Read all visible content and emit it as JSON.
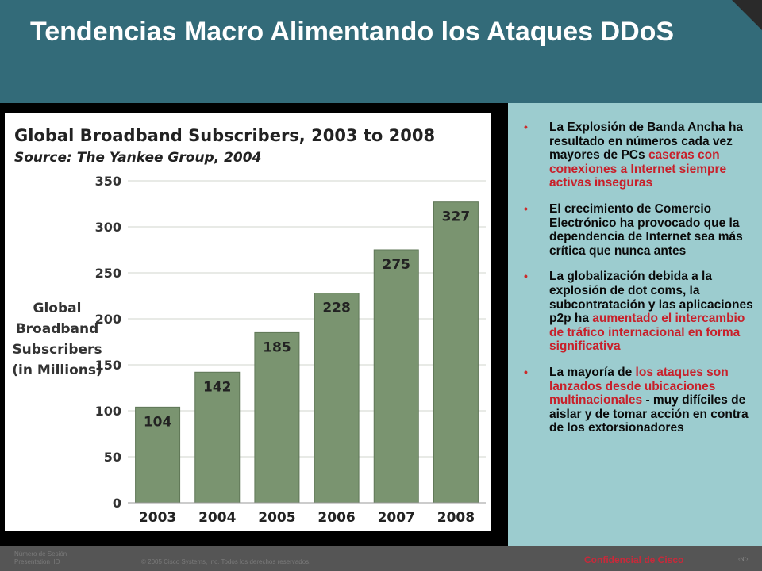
{
  "slide": {
    "title": "Tendencias Macro Alimentando los Ataques DDoS"
  },
  "bullets": [
    {
      "parts": [
        {
          "text": "La Explosión de Banda Ancha ha resultado en números cada vez mayores de PCs ",
          "hl": false
        },
        {
          "text": "caseras con conexiones a Internet siempre activas inseguras",
          "hl": true
        }
      ]
    },
    {
      "parts": [
        {
          "text": "El crecimiento de Comercio Electrónico ha provocado que la dependencia de Internet sea más crítica que nunca antes",
          "hl": false
        }
      ]
    },
    {
      "parts": [
        {
          "text": "La globalización debida a la explosión de dot coms, la subcontratación y las aplicaciones p2p ha ",
          "hl": false
        },
        {
          "text": "aumentado el intercambio de tráfico internacional en forma significativa",
          "hl": true
        }
      ]
    },
    {
      "parts": [
        {
          "text": "La mayoría de ",
          "hl": false
        },
        {
          "text": "los ataques son lanzados desde ubicaciones multinacionales",
          "hl": true
        },
        {
          "text": " - muy difíciles de aislar y de tomar acción en contra de los extorsionadores",
          "hl": false
        }
      ]
    }
  ],
  "footer": {
    "session_line1": "Número de Sesión",
    "session_line2": "Presentation_ID",
    "copyright": "© 2005 Cisco Systems, Inc. Todos los derechos reservados.",
    "confidential": "Confidencial de Cisco",
    "page": "‹N°›"
  },
  "colors": {
    "header": "#336b79",
    "panel": "#9ccccf",
    "bar": "#7a9470",
    "highlight": "#c8202a"
  },
  "chart_data": {
    "type": "bar",
    "title": "Global Broadband Subscribers, 2003 to 2008",
    "subtitle": "Source: The Yankee Group, 2004",
    "ylabel_lines": [
      "Global",
      "Broadband",
      "Subscribers",
      "(in Millions)"
    ],
    "categories": [
      "2003",
      "2004",
      "2005",
      "2006",
      "2007",
      "2008"
    ],
    "values": [
      104,
      142,
      185,
      228,
      275,
      327
    ],
    "yticks": [
      0,
      50,
      100,
      150,
      200,
      250,
      300,
      350
    ],
    "ylim": [
      0,
      350
    ],
    "grid": true
  }
}
